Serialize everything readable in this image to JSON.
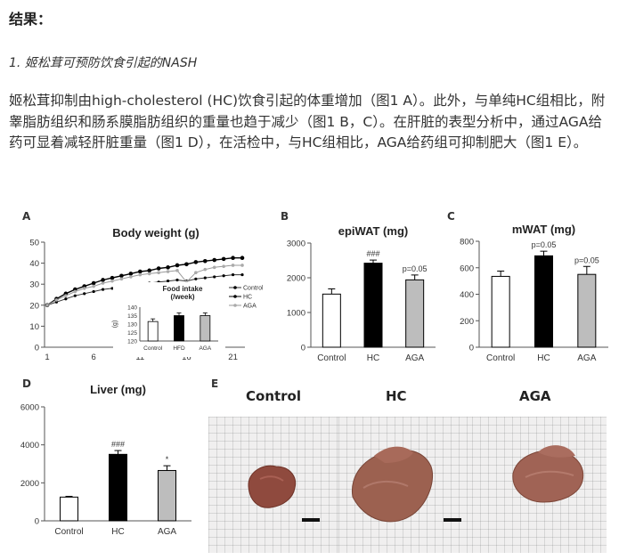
{
  "header": {
    "heading": "结果：",
    "subheading": "1. 姬松茸可预防饮食引起的NASH"
  },
  "paragraph": "姬松茸抑制由high-cholesterol (HC)饮食引起的体重增加（图1 A）。此外，与单纯HC组相比，附睾脂肪组织和肠系膜脂肪组织的重量也趋于减少（图1 B，C）。在肝脏的表型分析中，通过AGA给药可显着减轻肝脏重量（图1 D），在活检中，与HC组相比，AGA给药组可抑制肥大（图1 E）。",
  "figure": {
    "panel_labels": {
      "a": "A",
      "b": "B",
      "c": "C",
      "d": "D",
      "e": "E"
    },
    "photo_labels": [
      "Control",
      "HC",
      "AGA"
    ]
  },
  "colors": {
    "control": "#ffffff",
    "hc": "#000000",
    "aga": "#bdbdbd",
    "axis": "#555555"
  },
  "chart_data": [
    {
      "panel": "A",
      "type": "line",
      "title": "Body weight (g)",
      "ylim": [
        0,
        50
      ],
      "yticks": [
        0,
        10,
        20,
        30,
        40,
        50
      ],
      "xticks": [
        1,
        6,
        11,
        16,
        21
      ],
      "x": [
        1,
        2,
        3,
        4,
        5,
        6,
        7,
        8,
        9,
        10,
        11,
        12,
        13,
        14,
        15,
        16,
        17,
        18,
        19,
        20,
        21,
        22
      ],
      "series": [
        {
          "name": "Control",
          "values": [
            20,
            21.5,
            23,
            24.5,
            25.5,
            26.5,
            27.5,
            28,
            29,
            29.5,
            30,
            30.5,
            31,
            31.5,
            32,
            31.5,
            32.5,
            33,
            33.5,
            34,
            34.5,
            34.5
          ]
        },
        {
          "name": "HC",
          "values": [
            20,
            23,
            25.5,
            27.5,
            29,
            30.5,
            32,
            33,
            34,
            35,
            36,
            36.5,
            37.5,
            38,
            39,
            39.5,
            40.5,
            41,
            41.5,
            42,
            42.5,
            42.5
          ]
        },
        {
          "name": "AGA",
          "values": [
            20,
            22.5,
            24.5,
            26.5,
            28,
            29,
            30.5,
            31.5,
            32.5,
            33.5,
            34.5,
            35,
            35.5,
            36,
            36.5,
            31,
            35.5,
            37,
            38,
            38.5,
            39,
            39
          ]
        }
      ],
      "inset": {
        "title": "Food intake (/week)",
        "ylabel": "(g)",
        "ylim": [
          120,
          140
        ],
        "yticks": [
          120,
          125,
          130,
          135,
          140
        ],
        "categories": [
          "Control",
          "HFD",
          "AGA"
        ],
        "values": [
          131.5,
          135,
          135
        ]
      }
    },
    {
      "panel": "B",
      "type": "bar",
      "title": "epiWAT (mg)",
      "categories": [
        "Control",
        "HC",
        "AGA"
      ],
      "values": [
        1530,
        2420,
        1940
      ],
      "errors": [
        150,
        90,
        140
      ],
      "annotations": [
        "",
        "###",
        "p=0.05"
      ],
      "ylim": [
        0,
        3000
      ],
      "yticks": [
        0,
        1000,
        2000,
        3000
      ]
    },
    {
      "panel": "C",
      "type": "bar",
      "title": "mWAT (mg)",
      "categories": [
        "Control",
        "HC",
        "AGA"
      ],
      "values": [
        535,
        690,
        550
      ],
      "errors": [
        40,
        35,
        60
      ],
      "annotations": [
        "",
        "p=0.05",
        "p=0.05"
      ],
      "ylim": [
        0,
        800
      ],
      "yticks": [
        0,
        200,
        400,
        600,
        800
      ]
    },
    {
      "panel": "D",
      "type": "bar",
      "title": "Liver (mg)",
      "categories": [
        "Control",
        "HC",
        "AGA"
      ],
      "values": [
        1250,
        3500,
        2650
      ],
      "errors": [
        40,
        200,
        250
      ],
      "annotations": [
        "",
        "###",
        "*"
      ],
      "ylim": [
        0,
        6000
      ],
      "yticks": [
        0,
        2000,
        4000,
        6000
      ]
    }
  ]
}
